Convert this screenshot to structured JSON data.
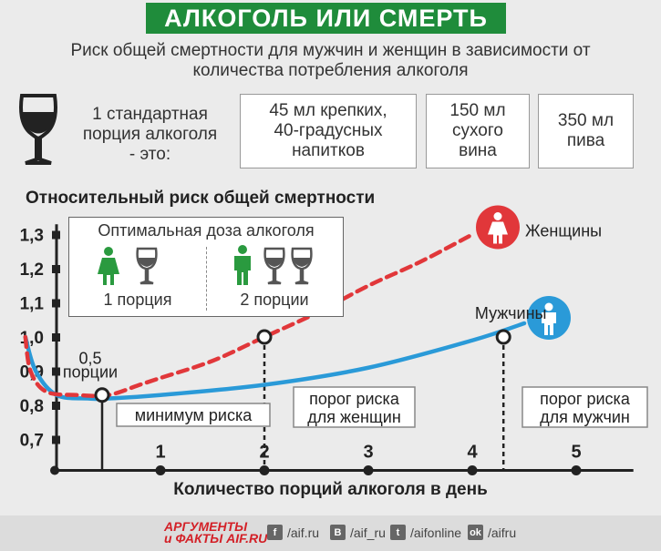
{
  "header": {
    "title": "АЛКОГОЛЬ ИЛИ СМЕРТЬ"
  },
  "subtitle": "Риск общей смертности для мужчин и женщин в зависимости от количества потребления алкоголя",
  "portion": {
    "intro_line1": "1 стандартная",
    "intro_line2": "порция алкоголя",
    "intro_line3": "- это:",
    "spirits_line1": "45 мл крепких,",
    "spirits_line2": "40-градусных",
    "spirits_line3": "напитков",
    "wine_line1": "150 мл",
    "wine_line2": "сухого",
    "wine_line3": "вина",
    "beer_line1": "350 мл",
    "beer_line2": "пива"
  },
  "optimal": {
    "title": "Оптимальная доза алкоголя",
    "women_label": "1 порция",
    "men_label": "2 порции"
  },
  "chart_data": {
    "type": "line",
    "title": "Относительный риск общей смертности",
    "xlabel": "Количество порций алкоголя в день",
    "ylabel": "Относительный риск общей смертности",
    "x_ticks": [
      "1",
      "2",
      "3",
      "4",
      "5"
    ],
    "y_ticks": [
      "1,3",
      "1,2",
      "1,1",
      "1,0",
      "0,9",
      "0,8",
      "0,7"
    ],
    "xlim": [
      -0.5,
      5.5
    ],
    "ylim": [
      0.62,
      1.34
    ],
    "series": [
      {
        "name": "Мужчины",
        "color": "#2a9ad8",
        "style": "solid",
        "x": [
          -0.3,
          -0.2,
          0,
          0.3,
          0.5,
          1,
          2,
          3,
          4,
          4.5
        ],
        "y": [
          1.0,
          0.9,
          0.83,
          0.82,
          0.82,
          0.83,
          0.86,
          0.91,
          0.99,
          1.04
        ]
      },
      {
        "name": "Женщины",
        "color": "#e1373a",
        "style": "dashed",
        "x": [
          -0.3,
          -0.25,
          -0.1,
          0.2,
          0.5,
          0.8,
          1,
          1.5,
          2,
          2.5,
          3,
          3.5,
          4
        ],
        "y": [
          1.0,
          0.9,
          0.84,
          0.83,
          0.83,
          0.86,
          0.88,
          0.93,
          1.0,
          1.07,
          1.15,
          1.22,
          1.3
        ]
      }
    ],
    "annotations": {
      "min_label_top": "0,5",
      "min_label_bottom": "порции",
      "min_risk": "минимум риска",
      "women_threshold_line1": "порог риска",
      "women_threshold_line2": "для женщин",
      "men_threshold_line1": "порог риска",
      "men_threshold_line2": "для мужчин"
    }
  },
  "footer": {
    "logo_line1": "АРГУМЕНТЫ",
    "logo_line2": "и ФАКТЫ AIF.RU",
    "social": [
      {
        "icon": "f",
        "label": "/aif.ru"
      },
      {
        "icon": "B",
        "label": "/aif_ru"
      },
      {
        "icon": "t",
        "label": "/aifonline"
      },
      {
        "icon": "ok",
        "label": "/aifru"
      }
    ]
  }
}
